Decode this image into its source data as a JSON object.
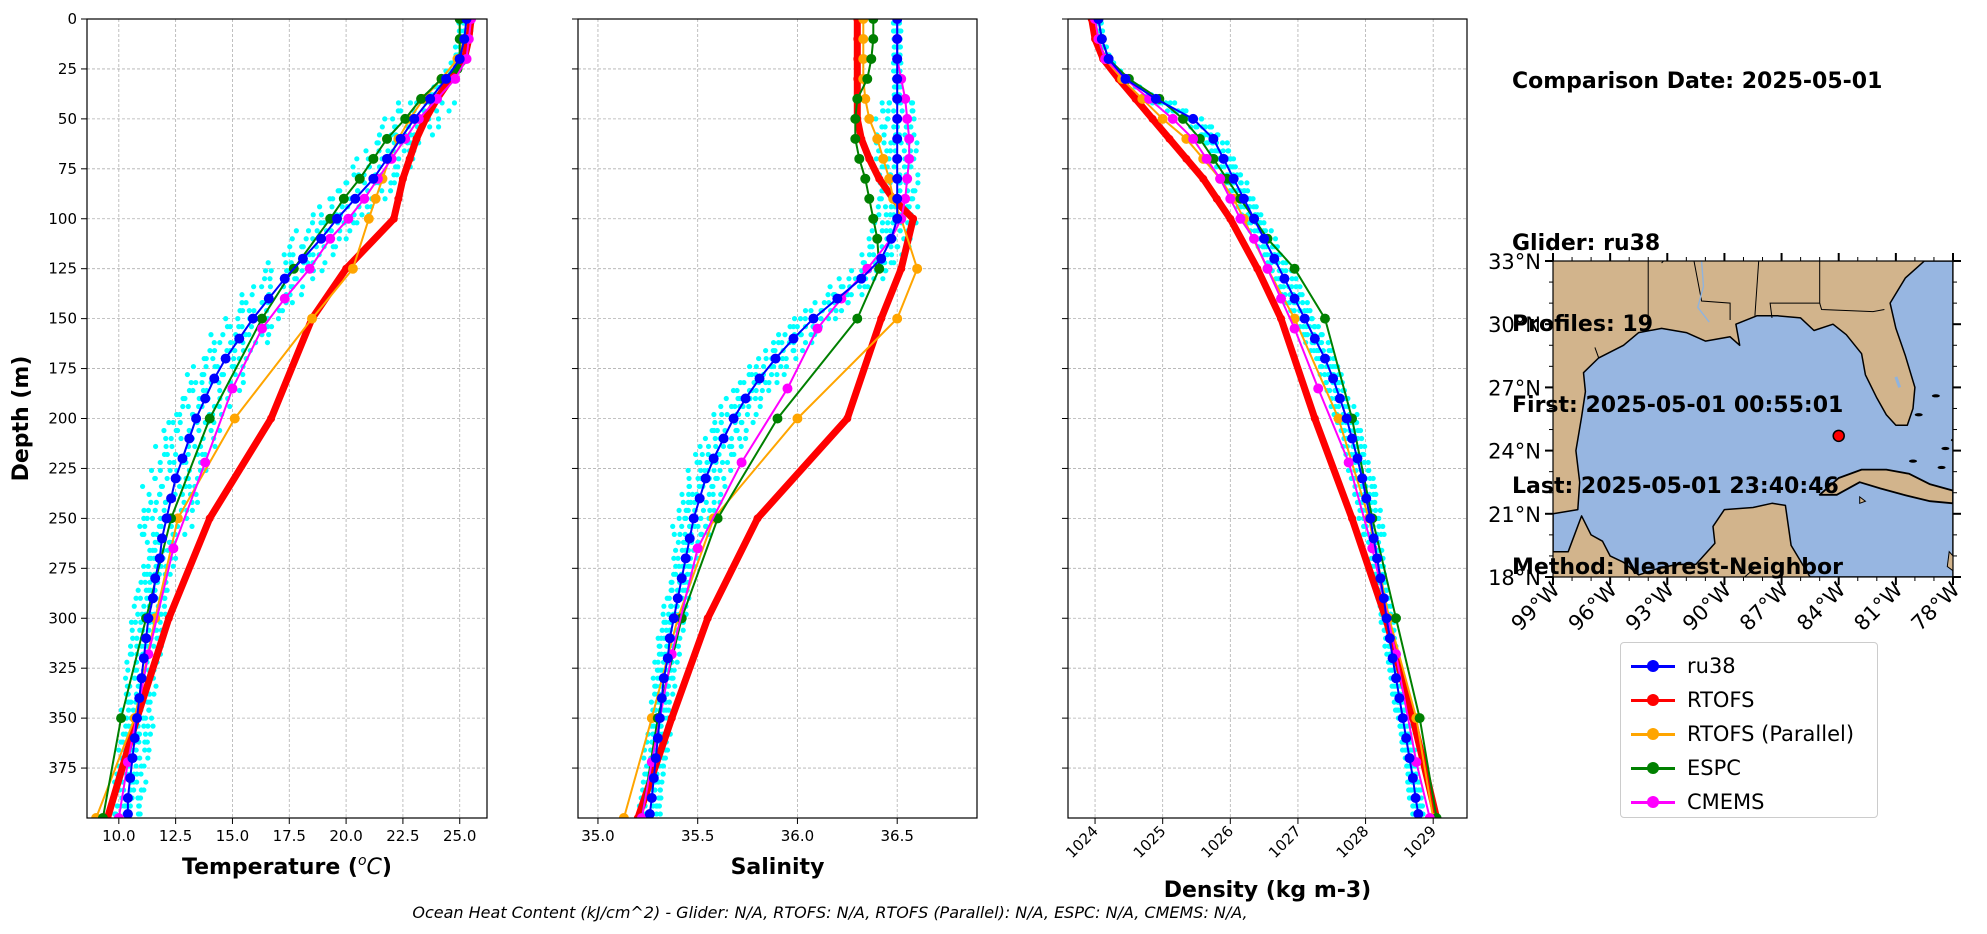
{
  "chart_data": [
    {
      "type": "line",
      "panel": "temperature",
      "ylabel": "Depth (m)",
      "xlabel": "Temperature (°C)",
      "xlabel_main": "Temperature (",
      "xlabel_unit": "o",
      "xlabel_unit_tail": "C",
      "xlabel_close": ")",
      "xlim": [
        8.6,
        26.2
      ],
      "ylim": [
        400,
        0
      ],
      "xticks": [
        "10.0",
        "12.5",
        "15.0",
        "17.5",
        "20.0",
        "22.5",
        "25.0"
      ],
      "xtick_values": [
        10,
        12.5,
        15,
        17.5,
        20,
        22.5,
        25
      ],
      "yticks": [
        "0",
        "25",
        "50",
        "75",
        "100",
        "125",
        "150",
        "175",
        "200",
        "225",
        "250",
        "275",
        "300",
        "325",
        "350",
        "375"
      ],
      "grid": true,
      "series": [
        {
          "name": "ru38",
          "color": "#0000ff",
          "depth": [
            0,
            10,
            20,
            30,
            40,
            50,
            60,
            70,
            80,
            90,
            100,
            110,
            120,
            130,
            140,
            150,
            160,
            170,
            180,
            190,
            200,
            210,
            220,
            230,
            240,
            250,
            260,
            270,
            280,
            290,
            300,
            310,
            320,
            330,
            340,
            350,
            360,
            370,
            380,
            390,
            398
          ],
          "values": [
            25.3,
            25.2,
            25.0,
            24.4,
            23.7,
            23.0,
            22.4,
            21.8,
            21.2,
            20.4,
            19.6,
            18.9,
            18.1,
            17.3,
            16.6,
            15.9,
            15.3,
            14.7,
            14.2,
            13.8,
            13.4,
            13.1,
            12.8,
            12.5,
            12.3,
            12.1,
            11.9,
            11.8,
            11.6,
            11.5,
            11.3,
            11.2,
            11.1,
            11.0,
            10.9,
            10.8,
            10.7,
            10.6,
            10.5,
            10.4,
            10.4
          ]
        },
        {
          "name": "RTOFS",
          "color": "#ff0000",
          "depth": [
            0,
            10,
            20,
            30,
            40,
            50,
            60,
            70,
            80,
            90,
            100,
            125,
            150,
            200,
            250,
            300,
            350,
            400
          ],
          "values": [
            25.5,
            25.4,
            25.2,
            24.6,
            24.0,
            23.5,
            23.1,
            22.8,
            22.5,
            22.3,
            22.1,
            20.0,
            18.5,
            16.7,
            14.0,
            12.2,
            10.8,
            9.5
          ]
        },
        {
          "name": "RTOFS (Parallel)",
          "color": "#ffa500",
          "depth": [
            0,
            10,
            20,
            30,
            40,
            50,
            60,
            70,
            80,
            90,
            100,
            125,
            150,
            200,
            250,
            300,
            350,
            400
          ],
          "values": [
            25.3,
            25.2,
            24.9,
            24.2,
            23.4,
            22.8,
            22.3,
            21.9,
            21.6,
            21.3,
            21.0,
            20.3,
            18.5,
            15.1,
            12.6,
            11.6,
            10.7,
            9.0
          ]
        },
        {
          "name": "ESPC",
          "color": "#008000",
          "depth": [
            0,
            10,
            20,
            25,
            30,
            40,
            50,
            60,
            70,
            80,
            90,
            100,
            125,
            150,
            200,
            250,
            300,
            350,
            400
          ],
          "values": [
            25.0,
            25.0,
            25.0,
            24.9,
            24.2,
            23.3,
            22.6,
            21.8,
            21.2,
            20.6,
            19.9,
            19.3,
            17.7,
            16.3,
            14.0,
            12.3,
            11.2,
            10.1,
            9.3
          ]
        },
        {
          "name": "CMEMS",
          "color": "#ff00ff",
          "depth": [
            0,
            10,
            20,
            30,
            40,
            50,
            60,
            70,
            80,
            90,
            100,
            110,
            125,
            140,
            155,
            185,
            222,
            265,
            318,
            372,
            400
          ],
          "values": [
            25.5,
            25.4,
            25.3,
            24.8,
            24.0,
            23.2,
            22.6,
            22.0,
            21.4,
            20.8,
            20.1,
            19.3,
            18.4,
            17.3,
            16.3,
            15.0,
            13.8,
            12.4,
            11.3,
            10.4,
            10.0
          ]
        }
      ]
    },
    {
      "type": "line",
      "panel": "salinity",
      "xlabel": "Salinity",
      "xlim": [
        34.9,
        36.9
      ],
      "ylim": [
        400,
        0
      ],
      "xticks": [
        "35.0",
        "35.5",
        "36.0",
        "36.5"
      ],
      "xtick_values": [
        35,
        35.5,
        36,
        36.5
      ],
      "grid": true,
      "series": [
        {
          "name": "ru38",
          "color": "#0000ff",
          "depth": [
            0,
            10,
            20,
            30,
            40,
            50,
            60,
            70,
            80,
            90,
            100,
            110,
            120,
            130,
            140,
            150,
            160,
            170,
            180,
            190,
            200,
            210,
            220,
            230,
            240,
            250,
            260,
            270,
            280,
            290,
            300,
            310,
            320,
            330,
            340,
            350,
            360,
            370,
            380,
            390,
            398
          ],
          "values": [
            36.5,
            36.5,
            36.5,
            36.5,
            36.5,
            36.5,
            36.5,
            36.5,
            36.5,
            36.5,
            36.5,
            36.47,
            36.42,
            36.32,
            36.2,
            36.08,
            35.98,
            35.89,
            35.81,
            35.74,
            35.68,
            35.63,
            35.58,
            35.54,
            35.51,
            35.48,
            35.46,
            35.44,
            35.42,
            35.4,
            35.38,
            35.36,
            35.35,
            35.33,
            35.32,
            35.31,
            35.3,
            35.29,
            35.28,
            35.27,
            35.26
          ]
        },
        {
          "name": "RTOFS",
          "color": "#ff0000",
          "depth": [
            0,
            10,
            20,
            30,
            40,
            50,
            60,
            70,
            80,
            90,
            100,
            125,
            150,
            200,
            250,
            300,
            350,
            400
          ],
          "values": [
            36.3,
            36.3,
            36.3,
            36.3,
            36.3,
            36.3,
            36.32,
            36.36,
            36.41,
            36.48,
            36.58,
            36.52,
            36.42,
            36.25,
            35.8,
            35.55,
            35.37,
            35.2
          ]
        },
        {
          "name": "RTOFS (Parallel)",
          "color": "#ffa500",
          "depth": [
            0,
            10,
            20,
            30,
            40,
            50,
            60,
            70,
            80,
            90,
            100,
            125,
            150,
            200,
            250,
            300,
            350,
            400
          ],
          "values": [
            36.33,
            36.33,
            36.33,
            36.33,
            36.34,
            36.36,
            36.4,
            36.43,
            36.46,
            36.48,
            36.52,
            36.6,
            36.5,
            36.0,
            35.58,
            35.4,
            35.27,
            35.13
          ]
        },
        {
          "name": "ESPC",
          "color": "#008000",
          "depth": [
            0,
            10,
            20,
            30,
            40,
            50,
            60,
            70,
            80,
            90,
            100,
            110,
            125,
            150,
            200,
            250,
            300,
            350,
            400
          ],
          "values": [
            36.38,
            36.38,
            36.37,
            36.35,
            36.3,
            36.29,
            36.29,
            36.31,
            36.34,
            36.36,
            36.38,
            36.4,
            36.41,
            36.3,
            35.9,
            35.6,
            35.42,
            35.3,
            35.22
          ]
        },
        {
          "name": "CMEMS",
          "color": "#ff00ff",
          "depth": [
            0,
            10,
            20,
            30,
            40,
            50,
            60,
            70,
            80,
            90,
            100,
            110,
            125,
            140,
            155,
            185,
            222,
            265,
            318,
            372,
            400
          ],
          "values": [
            36.5,
            36.5,
            36.5,
            36.52,
            36.54,
            36.55,
            36.56,
            36.56,
            36.55,
            36.54,
            36.52,
            36.47,
            36.35,
            36.22,
            36.1,
            35.95,
            35.72,
            35.5,
            35.37,
            35.27,
            35.22
          ]
        }
      ]
    },
    {
      "type": "line",
      "panel": "density",
      "xlabel": "Density (kg m-3)",
      "xlim": [
        1023.6,
        1029.5
      ],
      "ylim": [
        400,
        0
      ],
      "xticks": [
        "1024",
        "1025",
        "1026",
        "1027",
        "1028",
        "1029"
      ],
      "xtick_values": [
        1024,
        1025,
        1026,
        1027,
        1028,
        1029
      ],
      "grid": true,
      "series": [
        {
          "name": "ru38",
          "color": "#0000ff",
          "depth": [
            0,
            10,
            20,
            30,
            40,
            50,
            60,
            70,
            80,
            90,
            100,
            110,
            120,
            130,
            140,
            150,
            160,
            170,
            180,
            190,
            200,
            210,
            220,
            230,
            240,
            250,
            260,
            270,
            280,
            290,
            300,
            310,
            320,
            330,
            340,
            350,
            360,
            370,
            380,
            390,
            398
          ],
          "values": [
            1024.05,
            1024.1,
            1024.2,
            1024.45,
            1024.9,
            1025.45,
            1025.75,
            1025.9,
            1026.05,
            1026.2,
            1026.35,
            1026.5,
            1026.65,
            1026.8,
            1026.95,
            1027.1,
            1027.25,
            1027.4,
            1027.52,
            1027.62,
            1027.72,
            1027.8,
            1027.88,
            1027.95,
            1028.01,
            1028.07,
            1028.12,
            1028.17,
            1028.22,
            1028.27,
            1028.31,
            1028.36,
            1028.4,
            1028.45,
            1028.5,
            1028.55,
            1028.6,
            1028.65,
            1028.7,
            1028.74,
            1028.78
          ]
        },
        {
          "name": "RTOFS",
          "color": "#ff0000",
          "depth": [
            0,
            10,
            20,
            30,
            40,
            50,
            60,
            70,
            80,
            90,
            100,
            125,
            150,
            200,
            250,
            300,
            350,
            400
          ],
          "values": [
            1023.95,
            1024.0,
            1024.12,
            1024.35,
            1024.6,
            1024.85,
            1025.1,
            1025.35,
            1025.6,
            1025.8,
            1026.0,
            1026.4,
            1026.75,
            1027.25,
            1027.8,
            1028.3,
            1028.7,
            1029.05
          ]
        },
        {
          "name": "RTOFS (Parallel)",
          "color": "#ffa500",
          "depth": [
            0,
            10,
            20,
            30,
            40,
            50,
            60,
            70,
            80,
            90,
            100,
            125,
            150,
            200,
            250,
            300,
            350,
            400
          ],
          "values": [
            1024.0,
            1024.05,
            1024.15,
            1024.4,
            1024.7,
            1025.0,
            1025.35,
            1025.6,
            1025.85,
            1026.05,
            1026.2,
            1026.55,
            1026.95,
            1027.6,
            1028.05,
            1028.35,
            1028.75,
            1029.0
          ]
        },
        {
          "name": "ESPC",
          "color": "#008000",
          "depth": [
            0,
            10,
            20,
            30,
            40,
            50,
            60,
            70,
            80,
            90,
            100,
            110,
            125,
            150,
            200,
            250,
            300,
            350,
            400
          ],
          "values": [
            1024.05,
            1024.1,
            1024.2,
            1024.5,
            1024.95,
            1025.3,
            1025.55,
            1025.75,
            1025.95,
            1026.15,
            1026.35,
            1026.55,
            1026.95,
            1027.4,
            1027.8,
            1028.1,
            1028.45,
            1028.8,
            1029.05
          ]
        },
        {
          "name": "CMEMS",
          "color": "#ff00ff",
          "depth": [
            0,
            10,
            20,
            30,
            40,
            50,
            60,
            70,
            80,
            90,
            100,
            110,
            125,
            140,
            155,
            185,
            222,
            265,
            318,
            372,
            400
          ],
          "values": [
            1024.0,
            1024.05,
            1024.15,
            1024.45,
            1024.8,
            1025.15,
            1025.45,
            1025.65,
            1025.85,
            1026.0,
            1026.15,
            1026.35,
            1026.55,
            1026.75,
            1026.95,
            1027.3,
            1027.75,
            1028.1,
            1028.45,
            1028.75,
            1028.95
          ]
        }
      ]
    },
    {
      "type": "map",
      "panel": "location",
      "lat_ticks": [
        "33°N",
        "30°N",
        "27°N",
        "24°N",
        "21°N",
        "18°N"
      ],
      "lat_values": [
        33,
        30,
        27,
        24,
        21,
        18
      ],
      "lon_ticks": [
        "99°W",
        "96°W",
        "93°W",
        "90°W",
        "87°W",
        "84°W",
        "81°W",
        "78°W"
      ],
      "lon_values": [
        -99,
        -96,
        -93,
        -90,
        -87,
        -84,
        -81,
        -78
      ],
      "extent": [
        -99,
        -78,
        18,
        33
      ],
      "glider_position": {
        "lon": -84.0,
        "lat": 24.7,
        "color": "#ff0000"
      },
      "ocean_color": "#97b6e1",
      "land_color": "#d2b48c"
    }
  ],
  "info": {
    "line1": "Comparison Date: 2025-05-01",
    "line2": "",
    "line3": "Glider: ru38",
    "line4": "Profiles: 19",
    "line5": "First: 2025-05-01 00:55:01",
    "line6": "Last: 2025-05-01 23:40:46",
    "line7": "Method: Nearest-Neighbor"
  },
  "legend": [
    {
      "label": "ru38",
      "color": "#0000ff"
    },
    {
      "label": "RTOFS",
      "color": "#ff0000"
    },
    {
      "label": "RTOFS (Parallel)",
      "color": "#ffa500"
    },
    {
      "label": "ESPC",
      "color": "#008000"
    },
    {
      "label": "CMEMS",
      "color": "#ff00ff"
    }
  ],
  "scatter_color": "#00ffff",
  "footer": "Ocean Heat Content (kJ/cm^2) - Glider: N/A,  RTOFS: N/A,  RTOFS (Parallel): N/A,  ESPC: N/A,  CMEMS: N/A,"
}
